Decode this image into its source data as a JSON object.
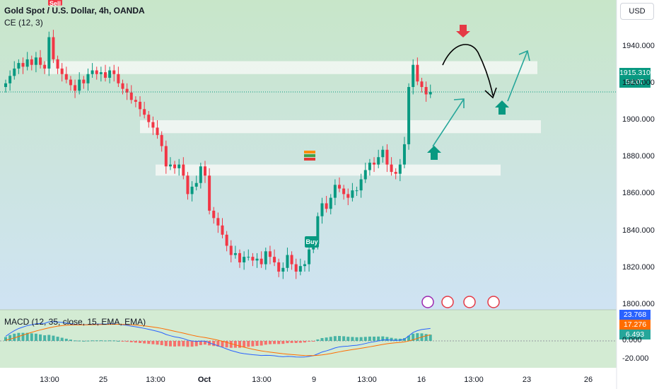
{
  "header": {
    "title": "Gold Spot / U.S. Dollar, 4h, OANDA",
    "indicator": "CE (12, 3)",
    "currency_button": "USD"
  },
  "colors": {
    "bull": "#089981",
    "bear": "#f23645",
    "macd_line": "#2962ff",
    "signal_line": "#ff6d00",
    "bg_top": "#c8e6c9",
    "bg_bottom": "#cfe3f3",
    "zone": "#f5f8f5",
    "arrow_teal": "#26a69a",
    "arrow_red": "#e53945"
  },
  "price_tag": {
    "price": "1915.310",
    "countdown": "54:07"
  },
  "signals": {
    "sell": "Sell",
    "buy": "Buy"
  },
  "macd_panel": {
    "label": "MACD (12, 35, close, 15, EMA, EMA)",
    "tags": [
      "23.768",
      "17.276",
      "6.493"
    ]
  },
  "chart_data": {
    "type": "candlestick",
    "title": "Gold Spot / U.S. Dollar, 4h, OANDA",
    "y_ticks": [
      "1940.000",
      "1920.000",
      "1900.000",
      "1880.000",
      "1860.000",
      "1840.000",
      "1820.000",
      "1800.000"
    ],
    "y_tick_values": [
      1940,
      1920,
      1900,
      1880,
      1860,
      1840,
      1820,
      1800
    ],
    "ylim": [
      1794,
      1947
    ],
    "x_ticks": [
      "13:00",
      "25",
      "13:00",
      "Oct",
      "13:00",
      "9",
      "13:00",
      "16",
      "13:00",
      "23",
      "26"
    ],
    "last_price": 1915.31,
    "closes": [
      1920,
      1924,
      1928,
      1931,
      1929,
      1933,
      1930,
      1934,
      1930,
      1928,
      1945,
      1933,
      1928,
      1925,
      1922,
      1919,
      1916,
      1922,
      1920,
      1925,
      1927,
      1925,
      1926,
      1923,
      1927,
      1925,
      1920,
      1917,
      1915,
      1911,
      1910,
      1906,
      1903,
      1899,
      1896,
      1892,
      1886,
      1875,
      1876,
      1874,
      1876,
      1870,
      1860,
      1864,
      1866,
      1875,
      1870,
      1851,
      1847,
      1843,
      1838,
      1832,
      1827,
      1828,
      1823,
      1826,
      1826,
      1824,
      1825,
      1822,
      1829,
      1826,
      1823,
      1818,
      1820,
      1827,
      1822,
      1818,
      1821,
      1822,
      1830,
      1833,
      1848,
      1855,
      1852,
      1858,
      1865,
      1863,
      1860,
      1858,
      1862,
      1862,
      1868,
      1873,
      1877,
      1876,
      1880,
      1884,
      1876,
      1872,
      1871,
      1876,
      1887,
      1918,
      1930,
      1921,
      1918,
      1914,
      1915.31
    ],
    "zones": [
      {
        "low": 1925,
        "high": 1932
      },
      {
        "low": 1893,
        "high": 1900
      },
      {
        "low": 1870,
        "high": 1876
      }
    ],
    "macd": {
      "ylim": [
        -26,
        30
      ],
      "y_ticks": [
        "0.000",
        "-20.000"
      ],
      "y_tick_values": [
        0,
        -20
      ],
      "macd_last": 23.768,
      "signal_last": 17.276,
      "hist_last": 6.493
    }
  }
}
